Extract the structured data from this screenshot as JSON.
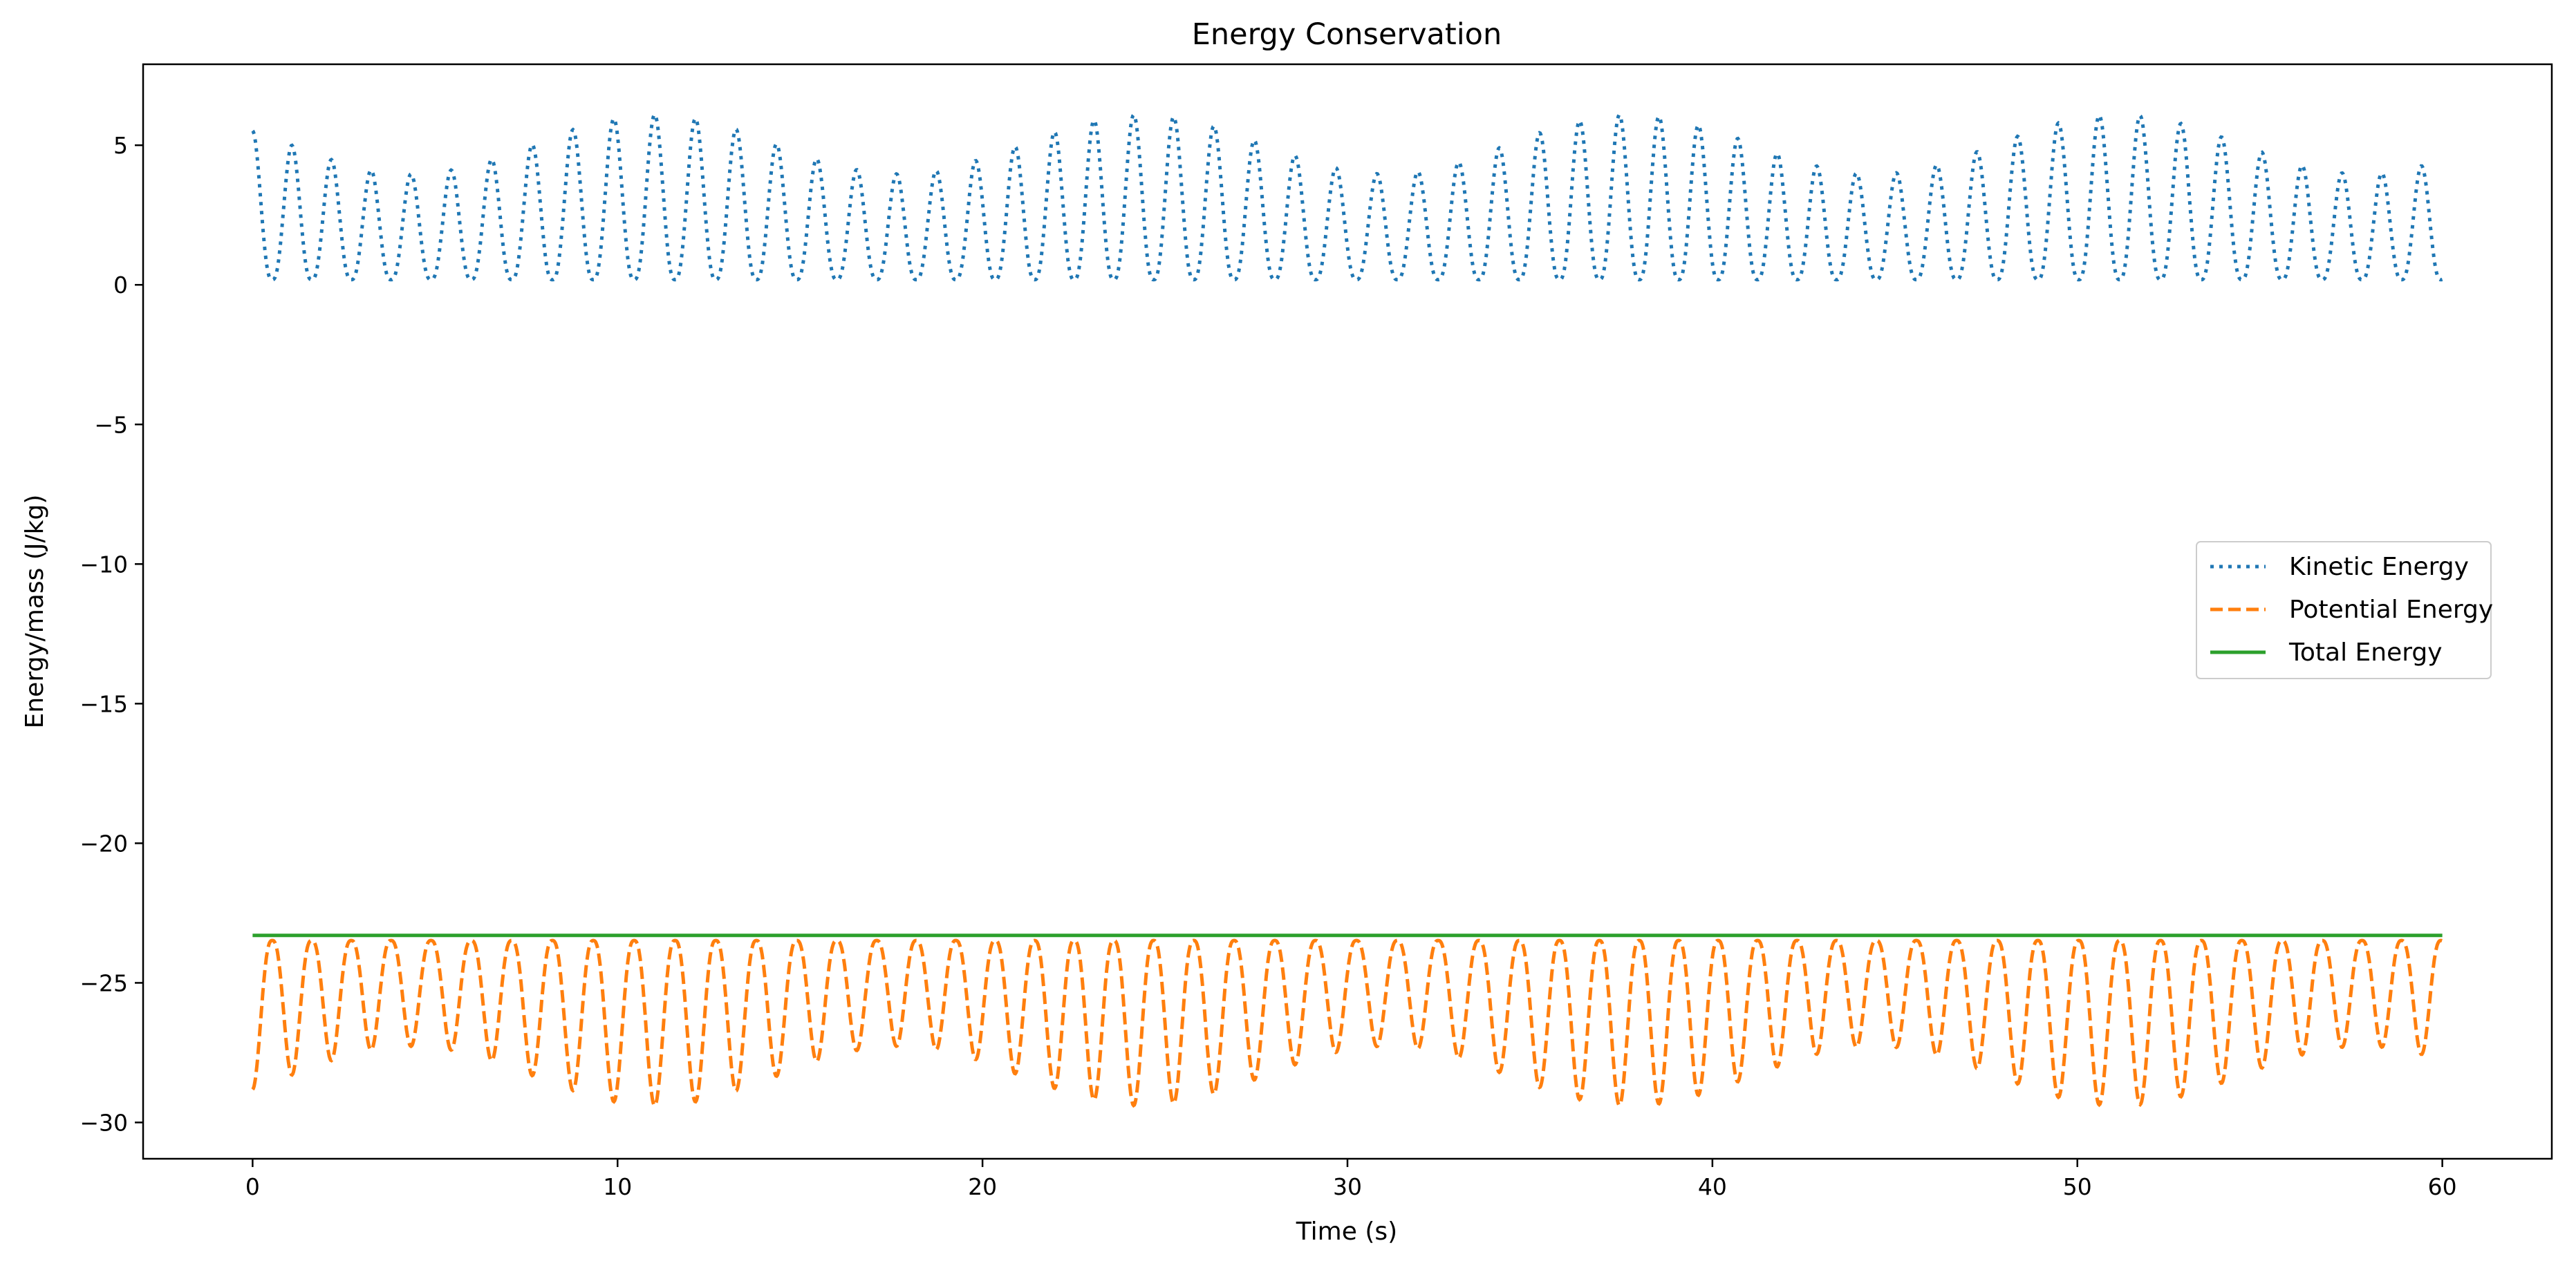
{
  "chart_data": {
    "type": "line",
    "title": "Energy Conservation",
    "xlabel": "Time (s)",
    "ylabel": "Energy/mass (J/kg)",
    "xlim": [
      -3,
      63
    ],
    "ylim": [
      -31.3,
      7.9
    ],
    "xticks": [
      0,
      10,
      20,
      30,
      40,
      50,
      60
    ],
    "yticks": [
      5,
      0,
      -5,
      -10,
      -15,
      -20,
      -25,
      -30
    ],
    "xtick_labels": [
      "0",
      "10",
      "20",
      "30",
      "40",
      "50",
      "60"
    ],
    "ytick_labels": [
      "5",
      "0",
      "−5",
      "−10",
      "−15",
      "−20",
      "−25",
      "−30"
    ],
    "grid": false,
    "legend_position": "center-right",
    "total_energy": -23.3,
    "series": [
      {
        "name": "Kinetic Energy",
        "color": "#1f77b4",
        "style": "dotted",
        "x_range": [
          0,
          60
        ],
        "approx_min": 0.0,
        "approx_max": 6.1,
        "approx_period_s": 1.1
      },
      {
        "name": "Potential Energy",
        "color": "#ff7f0e",
        "style": "dashed",
        "x_range": [
          0,
          60
        ],
        "approx_min": -29.4,
        "approx_max": -23.3,
        "approx_period_s": 1.1
      },
      {
        "name": "Total Energy",
        "color": "#2ca02c",
        "style": "solid",
        "x": [
          0,
          60
        ],
        "values": [
          -23.3,
          -23.3
        ]
      }
    ]
  }
}
